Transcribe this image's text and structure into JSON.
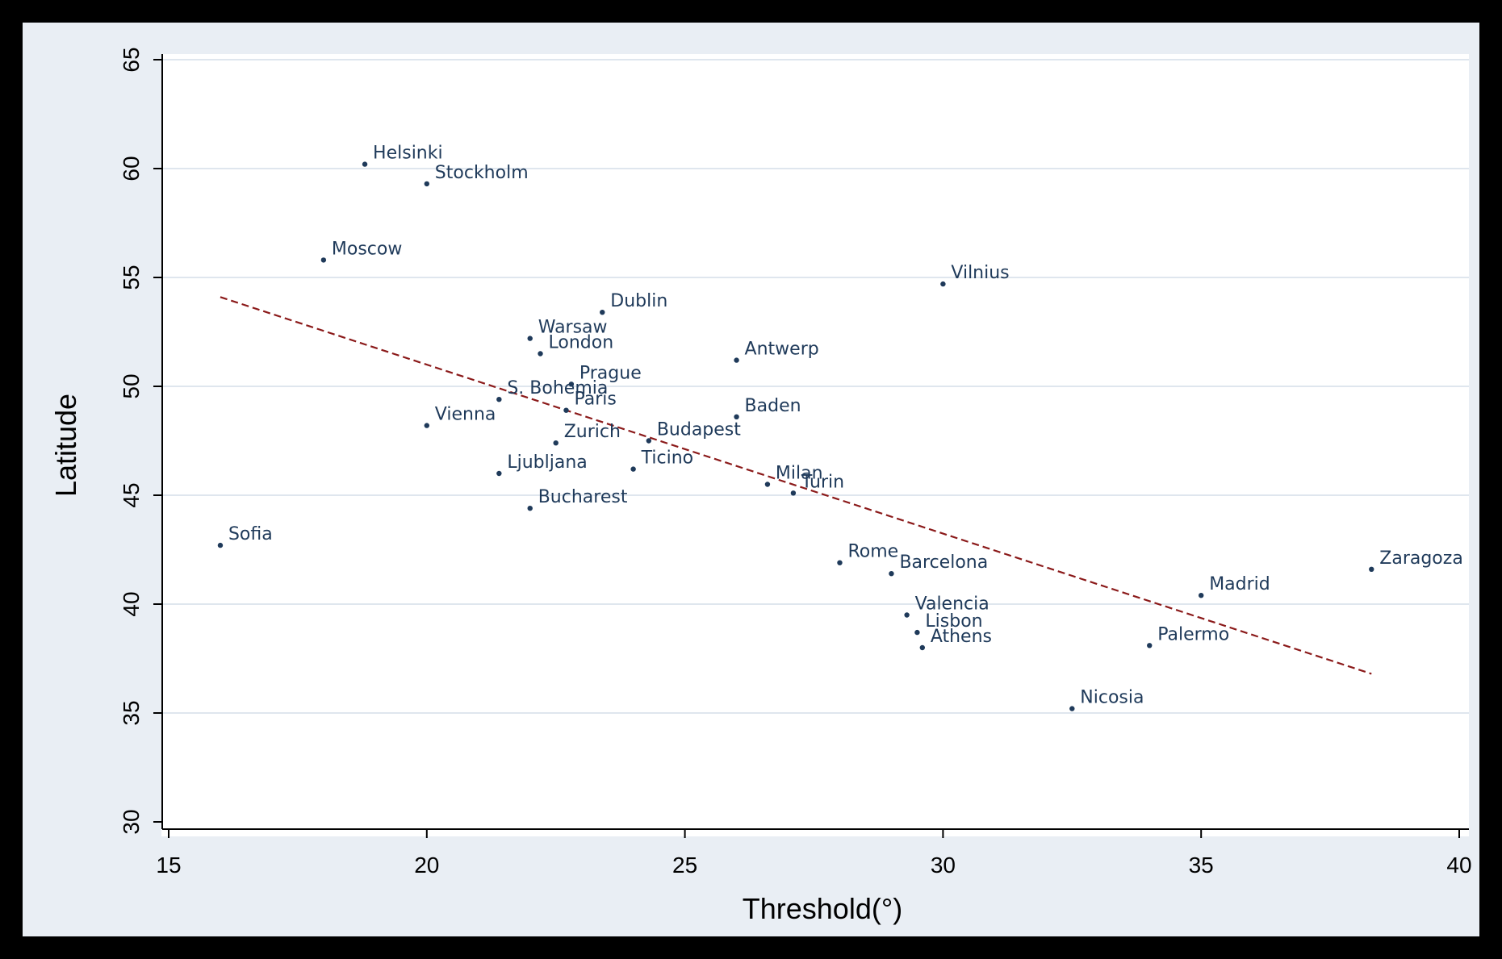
{
  "chart_data": {
    "type": "scatter",
    "title": "",
    "xlabel": "Threshold(°)",
    "ylabel": "Latitude",
    "xlim": [
      15,
      40
    ],
    "ylim": [
      30,
      65
    ],
    "xticks": [
      15,
      20,
      25,
      30,
      35,
      40
    ],
    "yticks": [
      30,
      35,
      40,
      45,
      50,
      55,
      60,
      65
    ],
    "grid": "horizontal",
    "legend": "none",
    "colors": {
      "plot_background": "#ffffff",
      "outer_background": "#e9eef4",
      "frame": "#000000",
      "points": "#1f3a5a",
      "fit_line": "#8b1a1a",
      "grid": "#dfe6ee"
    },
    "points": [
      {
        "label": "Helsinki",
        "x": 18.8,
        "y": 60.2
      },
      {
        "label": "Stockholm",
        "x": 20.0,
        "y": 59.3
      },
      {
        "label": "Moscow",
        "x": 18.0,
        "y": 55.8
      },
      {
        "label": "Vilnius",
        "x": 30.0,
        "y": 54.7
      },
      {
        "label": "Dublin",
        "x": 23.4,
        "y": 53.4
      },
      {
        "label": "Warsaw",
        "x": 22.0,
        "y": 52.2
      },
      {
        "label": "London",
        "x": 22.2,
        "y": 51.5
      },
      {
        "label": "Antwerp",
        "x": 26.0,
        "y": 51.2
      },
      {
        "label": "Prague",
        "x": 22.8,
        "y": 50.1
      },
      {
        "label": "S. Bohemia",
        "x": 21.4,
        "y": 49.4
      },
      {
        "label": "Paris",
        "x": 22.7,
        "y": 48.9
      },
      {
        "label": "Baden",
        "x": 26.0,
        "y": 48.6
      },
      {
        "label": "Vienna",
        "x": 20.0,
        "y": 48.2
      },
      {
        "label": "Zurich",
        "x": 22.5,
        "y": 47.4
      },
      {
        "label": "Budapest",
        "x": 24.3,
        "y": 47.5
      },
      {
        "label": "Ticino",
        "x": 24.0,
        "y": 46.2
      },
      {
        "label": "Ljubljana",
        "x": 21.4,
        "y": 46.0
      },
      {
        "label": "Milan",
        "x": 26.6,
        "y": 45.5
      },
      {
        "label": "Turin",
        "x": 27.1,
        "y": 45.1
      },
      {
        "label": "Bucharest",
        "x": 22.0,
        "y": 44.4
      },
      {
        "label": "Sofia",
        "x": 16.0,
        "y": 42.7
      },
      {
        "label": "Rome",
        "x": 28.0,
        "y": 41.9
      },
      {
        "label": "Barcelona",
        "x": 29.0,
        "y": 41.4
      },
      {
        "label": "Zaragoza",
        "x": 38.3,
        "y": 41.6
      },
      {
        "label": "Madrid",
        "x": 35.0,
        "y": 40.4
      },
      {
        "label": "Valencia",
        "x": 29.3,
        "y": 39.5
      },
      {
        "label": "Lisbon",
        "x": 29.5,
        "y": 38.7
      },
      {
        "label": "Athens",
        "x": 29.6,
        "y": 38.0
      },
      {
        "label": "Palermo",
        "x": 34.0,
        "y": 38.1
      },
      {
        "label": "Nicosia",
        "x": 32.5,
        "y": 35.2
      }
    ],
    "fit_line": {
      "style": "dashed",
      "x": [
        16.0,
        38.3
      ],
      "y": [
        54.1,
        36.8
      ]
    }
  }
}
